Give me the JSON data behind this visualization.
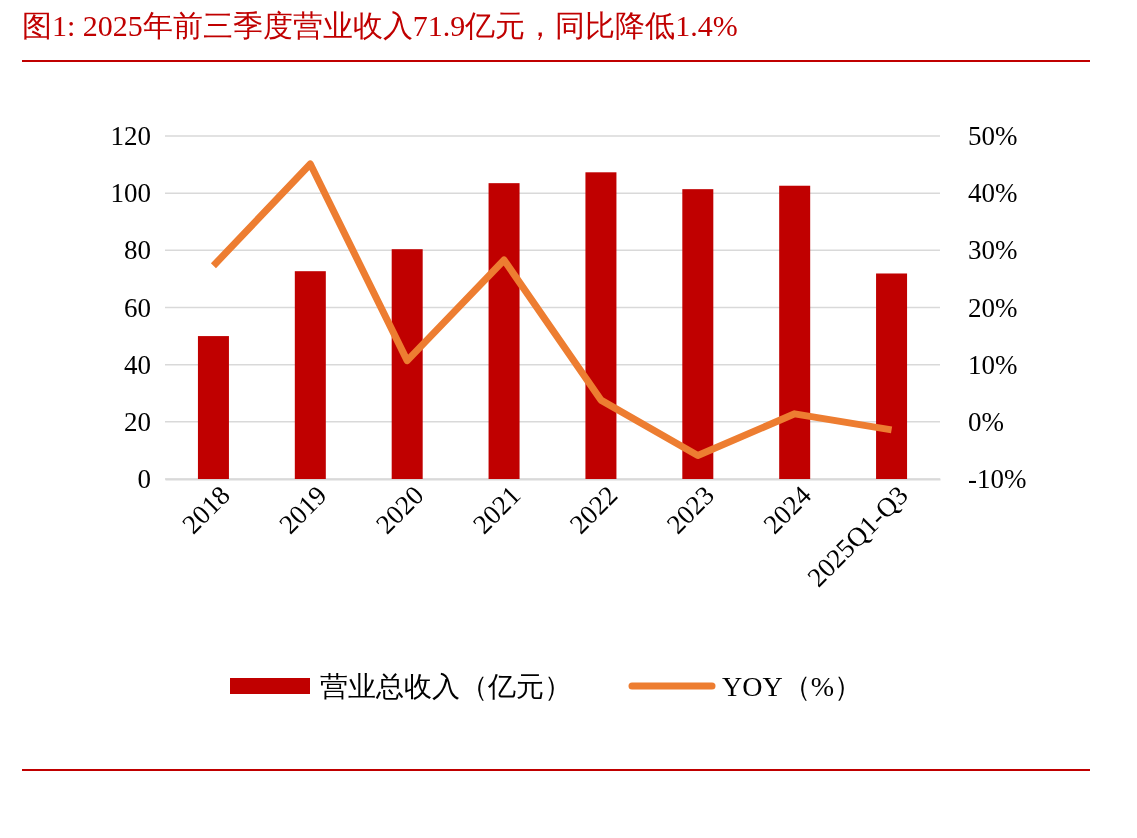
{
  "chart_data": {
    "type": "bar",
    "title": "图1:  2025年前三季度营业收入71.9亿元，同比降低1.4%",
    "categories": [
      "2018",
      "2019",
      "2020",
      "2021",
      "2022",
      "2023",
      "2024",
      "2025Q1-Q3"
    ],
    "series": [
      {
        "name": "营业总收入（亿元）",
        "color": "#c00000",
        "values": [
          50.0,
          72.7,
          80.4,
          103.5,
          107.3,
          101.4,
          102.6,
          71.9
        ]
      },
      {
        "name": "YOY（%）",
        "type": "line",
        "axis": "y2",
        "color": "#ed7d31",
        "values": [
          27.3,
          45.1,
          10.7,
          28.3,
          3.8,
          -5.9,
          1.4,
          -1.4
        ]
      }
    ],
    "ylim": [
      0,
      120
    ],
    "yticks": [
      0,
      20,
      40,
      60,
      80,
      100,
      120
    ],
    "y2lim": [
      -10,
      50
    ],
    "y2ticks": [
      {
        "value": -10,
        "label": "-10%"
      },
      {
        "value": 0,
        "label": "0%"
      },
      {
        "value": 10,
        "label": "10%"
      },
      {
        "value": 20,
        "label": "20%"
      },
      {
        "value": 30,
        "label": "30%"
      },
      {
        "value": 40,
        "label": "40%"
      },
      {
        "value": 50,
        "label": "50%"
      }
    ],
    "grid": "y",
    "legend": "bottom",
    "marker": "none",
    "line_style": "solid"
  }
}
